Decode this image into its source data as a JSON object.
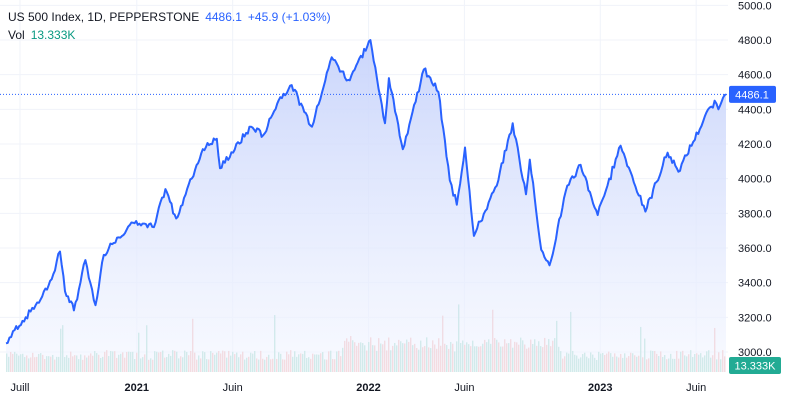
{
  "legend": {
    "symbol": "US 500 Index, 1D, PEPPERSTONE",
    "last": "4486.1",
    "change": "+45.9 (+1.03%)",
    "vol_label": "Vol",
    "vol_value": "13.333K"
  },
  "badges": {
    "price": "4486.1",
    "volume": "13.333K"
  },
  "colors": {
    "line": "#2962ff",
    "area_top": "#c7d3fb",
    "area_bottom": "#f3f6ff",
    "vol_up": "#8fd3c2",
    "vol_down": "#f3a9a6",
    "price_badge": "#2962ff",
    "vol_badge": "#22ab94"
  },
  "chart_data": {
    "type": "area",
    "title": "US 500 Index, 1D, PEPPERSTONE",
    "ylim": [
      2950,
      4850
    ],
    "y_ticks": [
      "3000.0",
      "3200.0",
      "3400.0",
      "3600.0",
      "3800.0",
      "4000.0",
      "4200.0",
      "4400.0",
      "4600.0",
      "4800.0",
      "5000.0"
    ],
    "x_ticks": [
      {
        "label": "Juill",
        "bold": false
      },
      {
        "label": "2021",
        "bold": true
      },
      {
        "label": "Juin",
        "bold": false
      },
      {
        "label": "2022",
        "bold": true
      },
      {
        "label": "Juin",
        "bold": false
      },
      {
        "label": "2023",
        "bold": true
      },
      {
        "label": "Juin",
        "bold": false
      }
    ],
    "x_tick_dates": [
      "2020-07-01",
      "2021-01-01",
      "2021-06-01",
      "2022-01-01",
      "2022-06-01",
      "2023-01-01",
      "2023-06-01"
    ],
    "x_range": [
      "2020-06-09",
      "2023-07-18"
    ],
    "series": [
      {
        "values": [
          [
            "2020-06-09",
            3050
          ],
          [
            "2020-06-20",
            3120
          ],
          [
            "2020-07-10",
            3200
          ],
          [
            "2020-08-05",
            3320
          ],
          [
            "2020-08-20",
            3420
          ],
          [
            "2020-09-02",
            3580
          ],
          [
            "2020-09-10",
            3350
          ],
          [
            "2020-09-24",
            3240
          ],
          [
            "2020-10-12",
            3530
          ],
          [
            "2020-10-28",
            3270
          ],
          [
            "2020-11-10",
            3560
          ],
          [
            "2020-12-01",
            3660
          ],
          [
            "2020-12-31",
            3756
          ],
          [
            "2021-01-28",
            3720
          ],
          [
            "2021-02-15",
            3940
          ],
          [
            "2021-03-04",
            3770
          ],
          [
            "2021-04-15",
            4170
          ],
          [
            "2021-05-07",
            4230
          ],
          [
            "2021-05-12",
            4060
          ],
          [
            "2021-06-30",
            4300
          ],
          [
            "2021-07-19",
            4250
          ],
          [
            "2021-08-15",
            4470
          ],
          [
            "2021-09-02",
            4540
          ],
          [
            "2021-10-04",
            4300
          ],
          [
            "2021-11-04",
            4700
          ],
          [
            "2021-11-30",
            4570
          ],
          [
            "2022-01-04",
            4800
          ],
          [
            "2022-01-27",
            4320
          ],
          [
            "2022-02-02",
            4580
          ],
          [
            "2022-02-24",
            4170
          ],
          [
            "2022-03-29",
            4630
          ],
          [
            "2022-04-21",
            4500
          ],
          [
            "2022-05-09",
            3990
          ],
          [
            "2022-05-20",
            3850
          ],
          [
            "2022-06-02",
            4180
          ],
          [
            "2022-06-16",
            3670
          ],
          [
            "2022-07-22",
            3960
          ],
          [
            "2022-08-16",
            4320
          ],
          [
            "2022-09-06",
            3910
          ],
          [
            "2022-09-12",
            4110
          ],
          [
            "2022-09-30",
            3590
          ],
          [
            "2022-10-13",
            3500
          ],
          [
            "2022-11-10",
            3960
          ],
          [
            "2022-12-01",
            4080
          ],
          [
            "2022-12-28",
            3790
          ],
          [
            "2023-02-02",
            4190
          ],
          [
            "2023-03-13",
            3810
          ],
          [
            "2023-04-17",
            4150
          ],
          [
            "2023-05-04",
            4040
          ],
          [
            "2023-06-12",
            4330
          ],
          [
            "2023-06-30",
            4450
          ],
          [
            "2023-07-06",
            4400
          ],
          [
            "2023-07-18",
            4486.1
          ]
        ]
      }
    ],
    "volume_note": "Volume histogram along the bottom edge (up/down colored bars)",
    "grid": true,
    "last_price_line": 4486.1
  }
}
